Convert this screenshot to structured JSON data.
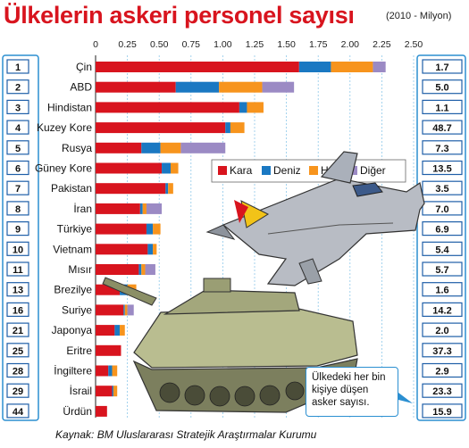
{
  "title": "Ülkelerin askeri personel sayısı",
  "subtitle": "(2010 - Milyon)",
  "source": "Kaynak: BM Uluslararası Stratejik Araştırmalar Kurumu",
  "note": "Ülkedeki her bin kişiye düşen asker sayısı.",
  "colors": {
    "Kara": "#d8141e",
    "Deniz": "#1a78c2",
    "Hava": "#f7941d",
    "Diğer": "#9b8ac4",
    "accent": "#2b8fd1"
  },
  "chart_data": {
    "type": "bar",
    "orientation": "horizontal",
    "stacked": true,
    "title": "Ülkelerin askeri personel sayısı",
    "subtitle": "(2010 - Milyon)",
    "xlim": [
      0,
      2.5
    ],
    "xticks": [
      "0",
      "0.25",
      "0.50",
      "0.75",
      "1.00",
      "1.25",
      "1.50",
      "1.75",
      "2.00",
      "2.25",
      "2.50"
    ],
    "grid": true,
    "legend_position": "center-right",
    "ranks": [
      "1",
      "2",
      "3",
      "4",
      "5",
      "6",
      "7",
      "8",
      "9",
      "10",
      "11",
      "13",
      "16",
      "21",
      "25",
      "28",
      "29",
      "44"
    ],
    "categories": [
      "Çin",
      "ABD",
      "Hindistan",
      "Kuzey Kore",
      "Rusya",
      "Güney Kore",
      "Pakistan",
      "İran",
      "Türkiye",
      "Vietnam",
      "Mısır",
      "Brezilye",
      "Suriye",
      "Japonya",
      "Eritre",
      "İngiltere",
      "İsrail",
      "Ürdün"
    ],
    "series": [
      {
        "name": "Kara",
        "values": [
          1.6,
          0.63,
          1.13,
          1.02,
          0.36,
          0.52,
          0.55,
          0.35,
          0.4,
          0.41,
          0.34,
          0.19,
          0.22,
          0.15,
          0.2,
          0.1,
          0.13,
          0.09
        ]
      },
      {
        "name": "Deniz",
        "values": [
          0.25,
          0.34,
          0.06,
          0.04,
          0.15,
          0.07,
          0.02,
          0.02,
          0.05,
          0.04,
          0.02,
          0.06,
          0.01,
          0.04,
          0.0,
          0.03,
          0.01,
          0.0
        ]
      },
      {
        "name": "Hava",
        "values": [
          0.33,
          0.34,
          0.13,
          0.11,
          0.16,
          0.06,
          0.04,
          0.03,
          0.06,
          0.03,
          0.03,
          0.07,
          0.02,
          0.04,
          0.0,
          0.04,
          0.03,
          0.0
        ]
      },
      {
        "name": "Diğer",
        "values": [
          0.1,
          0.25,
          0.0,
          0.0,
          0.35,
          0.0,
          0.0,
          0.12,
          0.0,
          0.0,
          0.08,
          0.0,
          0.05,
          0.0,
          0.0,
          0.0,
          0.0,
          0.0
        ]
      }
    ],
    "per_thousand": [
      "1.7",
      "5.0",
      "1.1",
      "48.7",
      "7.3",
      "13.5",
      "3.5",
      "7.0",
      "6.9",
      "5.4",
      "5.7",
      "1.6",
      "14.2",
      "2.0",
      "37.3",
      "2.9",
      "23.3",
      "15.9"
    ]
  }
}
